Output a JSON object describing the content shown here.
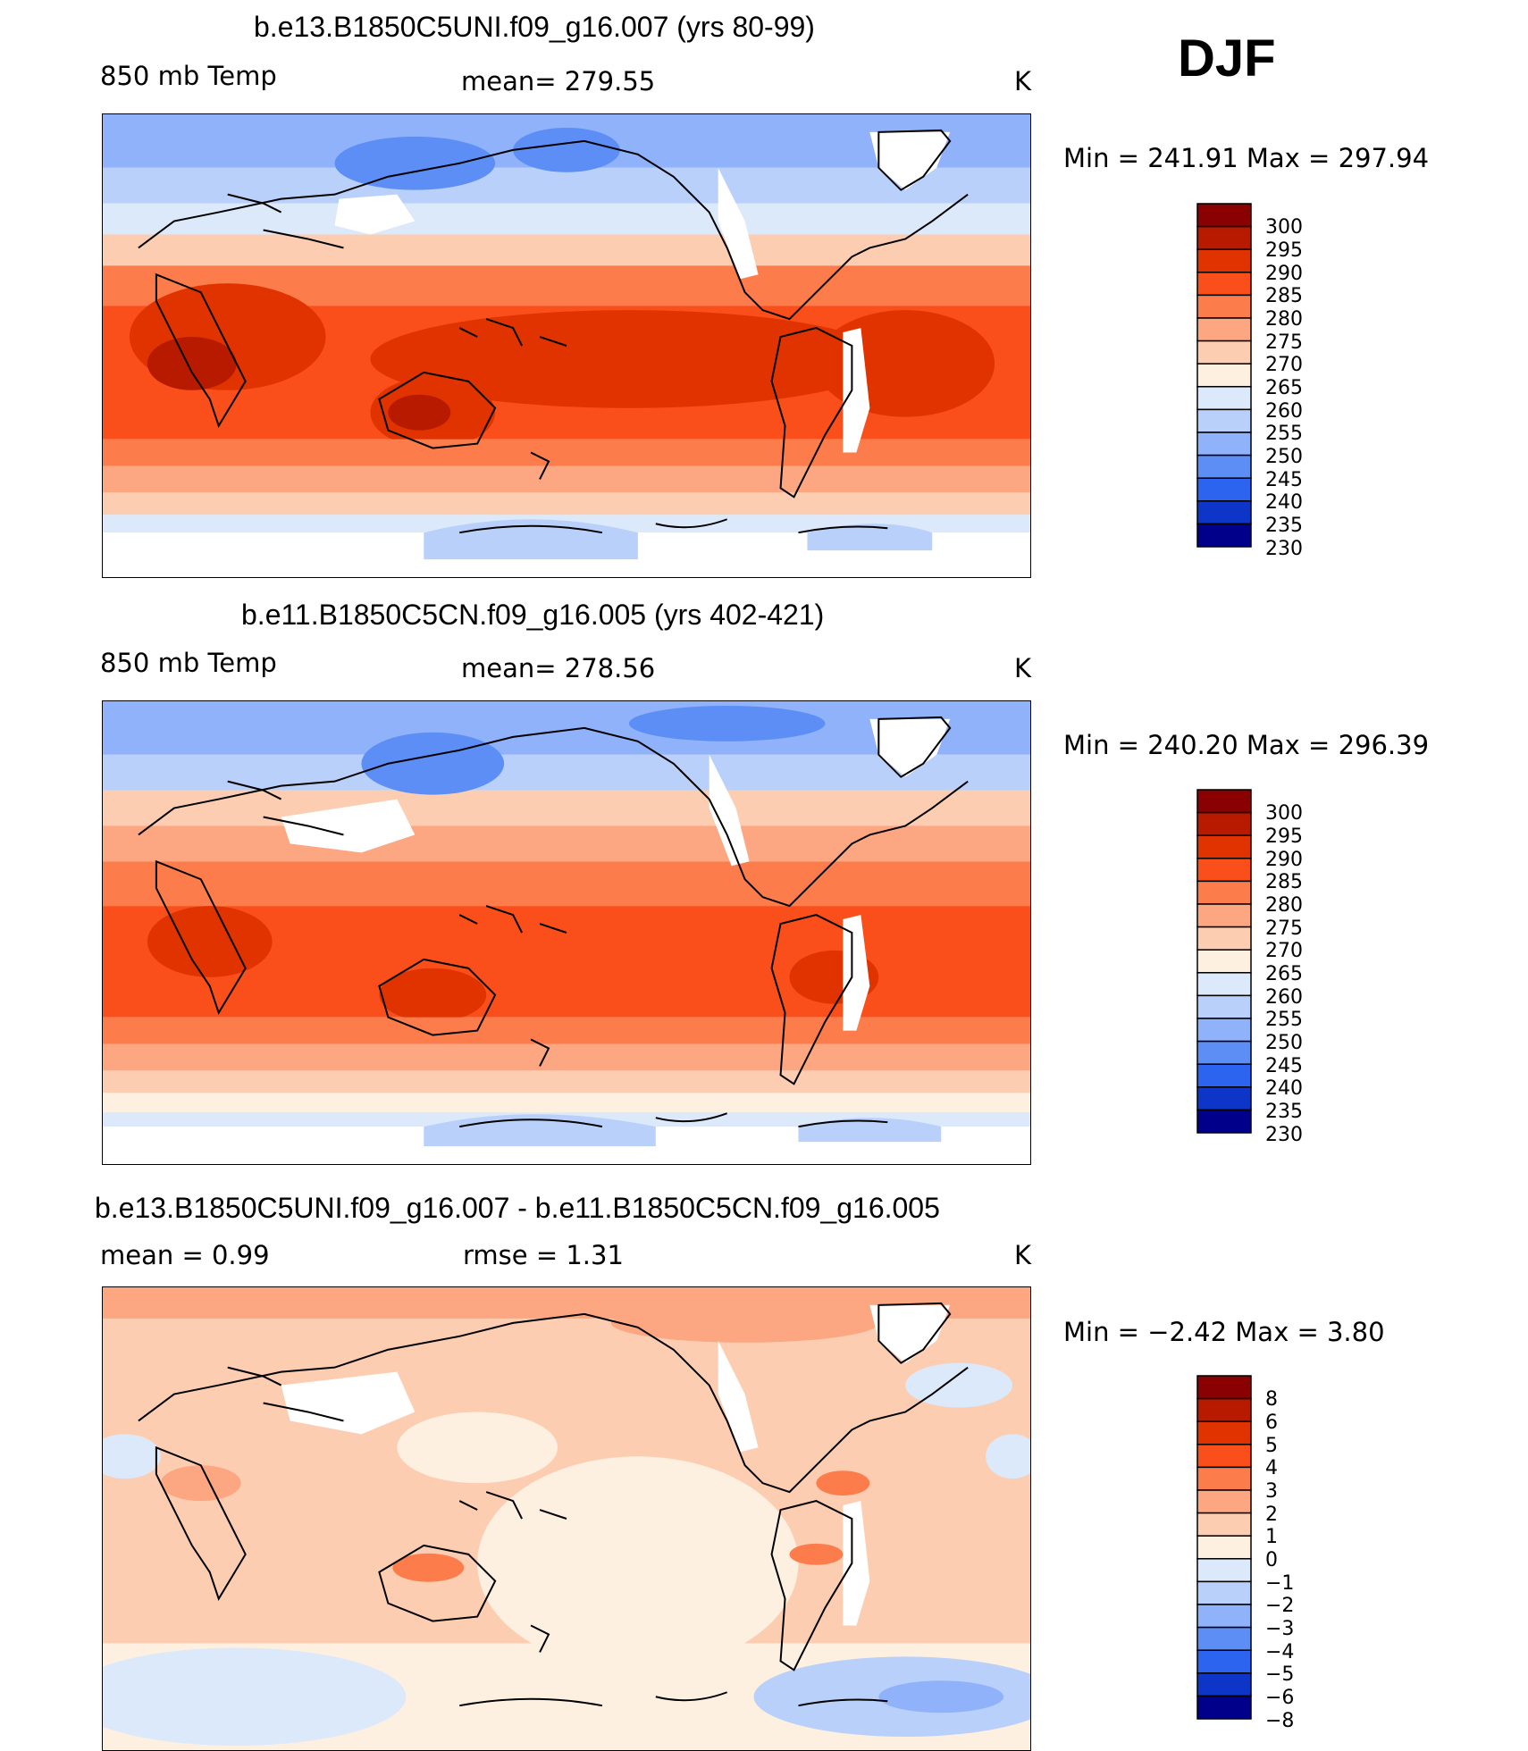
{
  "season": "DJF",
  "units": "K",
  "panels": [
    {
      "title": "b.e13.B1850C5UNI.f09_g16.007 (yrs 80-99)",
      "variable": "850 mb Temp",
      "stat_text": "mean=  279.55",
      "units": "K",
      "minmax": "Min  =  241.91  Max  =  297.94",
      "color_levels": [
        "300",
        "295",
        "290",
        "285",
        "280",
        "275",
        "270",
        "265",
        "260",
        "255",
        "250",
        "245",
        "240",
        "235",
        "230"
      ]
    },
    {
      "title": "b.e11.B1850C5CN.f09_g16.005 (yrs 402-421)",
      "variable": "850 mb Temp",
      "stat_text": "mean=  278.56",
      "units": "K",
      "minmax": "Min  =  240.20  Max  =  296.39",
      "color_levels": [
        "300",
        "295",
        "290",
        "285",
        "280",
        "275",
        "270",
        "265",
        "260",
        "255",
        "250",
        "245",
        "240",
        "235",
        "230"
      ]
    },
    {
      "title": "b.e13.B1850C5UNI.f09_g16.007 - b.e11.B1850C5CN.f09_g16.005",
      "mean_text": "mean  =     0.99",
      "rmse_text": "rmse  =     1.31",
      "units": "K",
      "minmax": "Min  =    −2.42  Max  =      3.80",
      "color_levels": [
        "8",
        "6",
        "5",
        "4",
        "3",
        "2",
        "1",
        "0",
        "−1",
        "−2",
        "−3",
        "−4",
        "−5",
        "−6",
        "−8"
      ]
    }
  ],
  "colors": {
    "palette_top_to_bottom": [
      "#8b0000",
      "#b81a00",
      "#e03300",
      "#fa4f1b",
      "#fc7c4c",
      "#fca682",
      "#fdcdb2",
      "#fef0e1",
      "#dbe9fb",
      "#b8d0fa",
      "#8fb2fa",
      "#5c8ef5",
      "#2c64f0",
      "#0d36c8",
      "#00008a"
    ]
  },
  "chart_data": {
    "type": "heatmap",
    "figure_label": "DJF",
    "maps": [
      {
        "title": "b.e13.B1850C5UNI.f09_g16.007 (yrs 80-99)",
        "variable": "850 mb Temp",
        "units": "K",
        "mean": 279.55,
        "min": 241.91,
        "max": 297.94,
        "contour_levels": [
          230,
          235,
          240,
          245,
          250,
          255,
          260,
          265,
          270,
          275,
          280,
          285,
          290,
          295,
          300
        ]
      },
      {
        "title": "b.e11.B1850C5CN.f09_g16.005 (yrs 402-421)",
        "variable": "850 mb Temp",
        "units": "K",
        "mean": 278.56,
        "min": 240.2,
        "max": 296.39,
        "contour_levels": [
          230,
          235,
          240,
          245,
          250,
          255,
          260,
          265,
          270,
          275,
          280,
          285,
          290,
          295,
          300
        ]
      },
      {
        "title": "b.e13.B1850C5UNI.f09_g16.007 - b.e11.B1850C5CN.f09_g16.005",
        "units": "K",
        "mean": 0.99,
        "rmse": 1.31,
        "min": -2.42,
        "max": 3.8,
        "contour_levels": [
          -8,
          -6,
          -5,
          -4,
          -3,
          -2,
          -1,
          0,
          1,
          2,
          3,
          4,
          5,
          6,
          8
        ]
      }
    ]
  }
}
